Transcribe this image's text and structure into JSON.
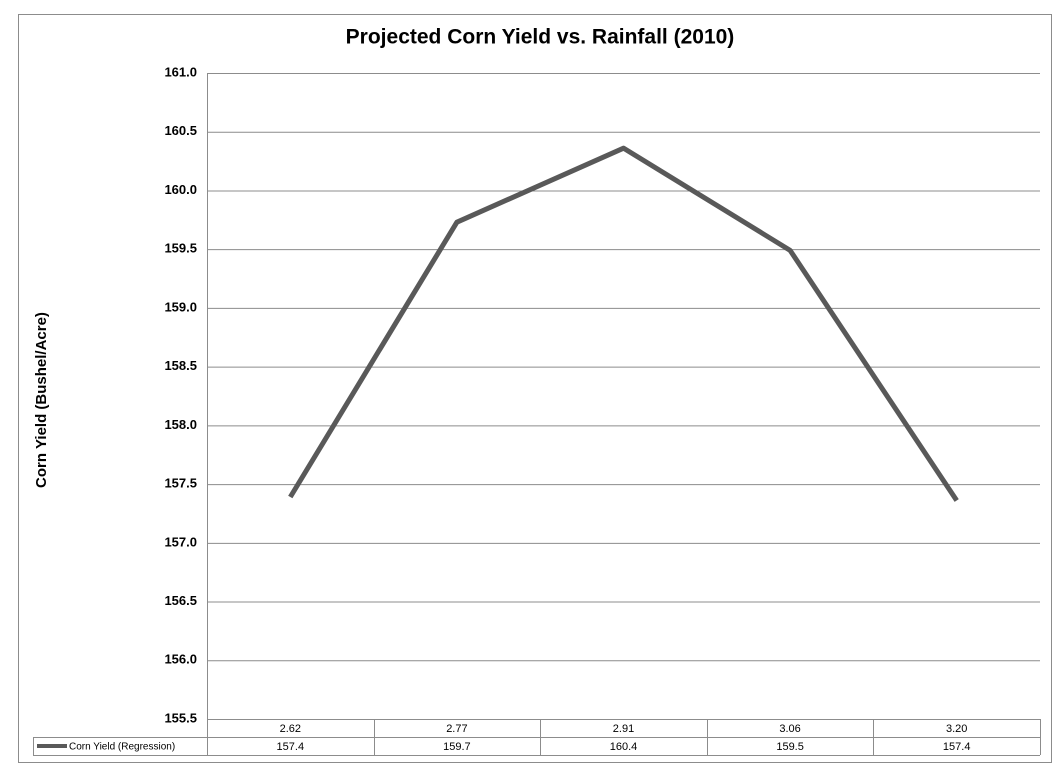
{
  "chart_data": {
    "type": "line",
    "title": "Projected Corn Yield vs. Rainfall (2010)",
    "y_label": "Corn Yield (Bushel/Acre)",
    "categories": [
      "2.62",
      "2.77",
      "2.91",
      "3.06",
      "3.20"
    ],
    "series": [
      {
        "name": "Corn Yield (Regression)",
        "color": "#595959",
        "values": [
          157.39,
          159.73,
          160.36,
          159.49,
          157.36
        ],
        "value_labels": [
          "157.4",
          "159.7",
          "160.4",
          "159.5",
          "157.4"
        ]
      }
    ],
    "ylim": [
      155.5,
      161.0
    ],
    "yticks": [
      {
        "value": 155.5,
        "label": "155.5"
      },
      {
        "value": 156.0,
        "label": "156.0"
      },
      {
        "value": 156.5,
        "label": "156.5"
      },
      {
        "value": 157.0,
        "label": "157.0"
      },
      {
        "value": 157.5,
        "label": "157.5"
      },
      {
        "value": 158.0,
        "label": "158.0"
      },
      {
        "value": 158.5,
        "label": "158.5"
      },
      {
        "value": 159.0,
        "label": "159.0"
      },
      {
        "value": 159.5,
        "label": "159.5"
      },
      {
        "value": 160.0,
        "label": "160.0"
      },
      {
        "value": 160.5,
        "label": "160.5"
      },
      {
        "value": 161.0,
        "label": "161.0"
      }
    ],
    "grid": true,
    "data_table": true
  }
}
